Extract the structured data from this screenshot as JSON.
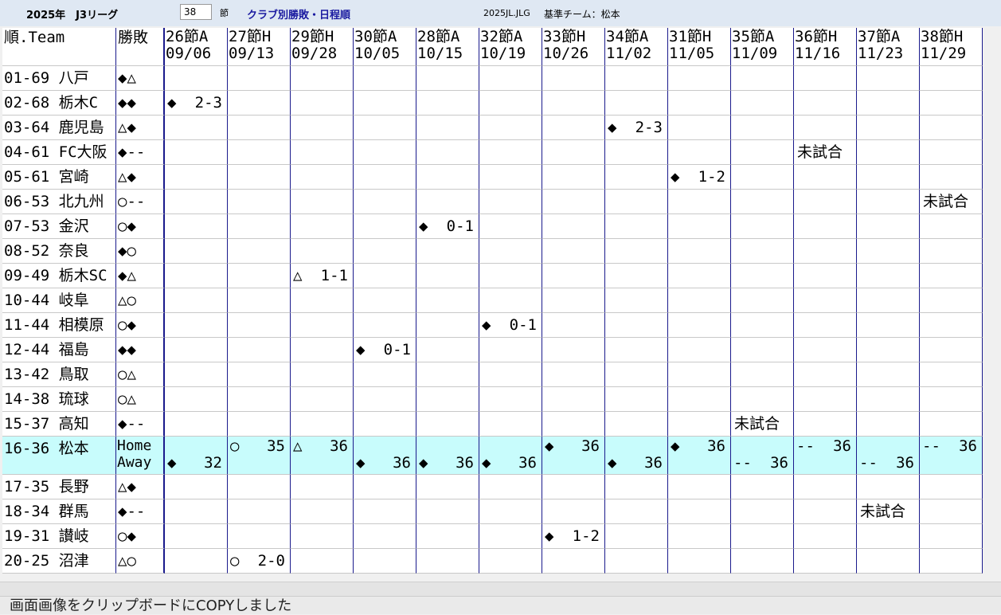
{
  "header": {
    "league": "2025年　J3リーグ",
    "round": "38",
    "round_unit": "節",
    "title": "クラブ別勝敗・日程順",
    "file": "2025JL.JLG",
    "base_team": "基準チーム：松本"
  },
  "table": {
    "columns": [
      "順.Team",
      "勝敗"
    ],
    "matches": [
      [
        "26節A",
        "09/06"
      ],
      [
        "27節H",
        "09/13"
      ],
      [
        "29節H",
        "09/28"
      ],
      [
        "30節A",
        "10/05"
      ],
      [
        "28節A",
        "10/15"
      ],
      [
        "32節A",
        "10/19"
      ],
      [
        "33節H",
        "10/26"
      ],
      [
        "34節A",
        "11/02"
      ],
      [
        "31節H",
        "11/05"
      ],
      [
        "35節A",
        "11/09"
      ],
      [
        "36節H",
        "11/16"
      ],
      [
        "37節A",
        "11/23"
      ],
      [
        "38節H",
        "11/29"
      ]
    ],
    "rows": [
      {
        "team": "01-69 八戸",
        "result": "◆△",
        "cells": [
          null,
          null,
          null,
          null,
          null,
          null,
          null,
          null,
          null,
          null,
          null,
          null,
          null
        ]
      },
      {
        "team": "02-68 栃木C",
        "result": "◆◆",
        "cells": [
          {
            "mark": "◆",
            "score": "2-3"
          },
          null,
          null,
          null,
          null,
          null,
          null,
          null,
          null,
          null,
          null,
          null,
          null
        ]
      },
      {
        "team": "03-64 鹿児島",
        "result": "△◆",
        "cells": [
          null,
          null,
          null,
          null,
          null,
          null,
          null,
          {
            "mark": "◆",
            "score": "2-3"
          },
          null,
          null,
          null,
          null,
          null
        ]
      },
      {
        "team": "04-61 FC大阪",
        "result": "◆--",
        "cells": [
          null,
          null,
          null,
          null,
          null,
          null,
          null,
          null,
          null,
          null,
          {
            "note": "未試合"
          },
          null,
          null
        ]
      },
      {
        "team": "05-61 宮崎",
        "result": "△◆",
        "cells": [
          null,
          null,
          null,
          null,
          null,
          null,
          null,
          null,
          {
            "mark": "◆",
            "score": "1-2"
          },
          null,
          null,
          null,
          null
        ]
      },
      {
        "team": "06-53 北九州",
        "result": "○--",
        "cells": [
          null,
          null,
          null,
          null,
          null,
          null,
          null,
          null,
          null,
          null,
          null,
          null,
          {
            "note": "未試合"
          }
        ]
      },
      {
        "team": "07-53 金沢",
        "result": "○◆",
        "cells": [
          null,
          null,
          null,
          null,
          {
            "mark": "◆",
            "score": "0-1"
          },
          null,
          null,
          null,
          null,
          null,
          null,
          null,
          null
        ]
      },
      {
        "team": "08-52 奈良",
        "result": "◆○",
        "cells": [
          null,
          null,
          null,
          null,
          null,
          null,
          null,
          null,
          null,
          null,
          null,
          null,
          null
        ]
      },
      {
        "team": "09-49 栃木SC",
        "result": "◆△",
        "cells": [
          null,
          null,
          {
            "mark": "△",
            "score": "1-1"
          },
          null,
          null,
          null,
          null,
          null,
          null,
          null,
          null,
          null,
          null
        ]
      },
      {
        "team": "10-44 岐阜",
        "result": "△○",
        "cells": [
          null,
          null,
          null,
          null,
          null,
          null,
          null,
          null,
          null,
          null,
          null,
          null,
          null
        ]
      },
      {
        "team": "11-44 相模原",
        "result": "○◆",
        "cells": [
          null,
          null,
          null,
          null,
          null,
          {
            "mark": "◆",
            "score": "0-1"
          },
          null,
          null,
          null,
          null,
          null,
          null,
          null
        ]
      },
      {
        "team": "12-44 福島",
        "result": "◆◆",
        "cells": [
          null,
          null,
          null,
          {
            "mark": "◆",
            "score": "0-1"
          },
          null,
          null,
          null,
          null,
          null,
          null,
          null,
          null,
          null
        ]
      },
      {
        "team": "13-42 鳥取",
        "result": "○△",
        "cells": [
          null,
          null,
          null,
          null,
          null,
          null,
          null,
          null,
          null,
          null,
          null,
          null,
          null
        ]
      },
      {
        "team": "14-38 琉球",
        "result": "○△",
        "cells": [
          null,
          null,
          null,
          null,
          null,
          null,
          null,
          null,
          null,
          null,
          null,
          null,
          null
        ]
      },
      {
        "team": "15-37 高知",
        "result": "◆--",
        "cells": [
          null,
          null,
          null,
          null,
          null,
          null,
          null,
          null,
          null,
          {
            "note": "未試合"
          },
          null,
          null,
          null
        ]
      },
      {
        "team": "16-36 松本",
        "result": [
          "Home",
          "Away"
        ],
        "cells": [
          {
            "home": null,
            "away": {
              "mark": "◆",
              "score": "32"
            }
          },
          {
            "home": {
              "mark": "○",
              "score": "35"
            },
            "away": null
          },
          {
            "home": {
              "mark": "△",
              "score": "36"
            },
            "away": null
          },
          {
            "home": null,
            "away": {
              "mark": "◆",
              "score": "36"
            }
          },
          {
            "home": null,
            "away": {
              "mark": "◆",
              "score": "36"
            }
          },
          {
            "home": null,
            "away": {
              "mark": "◆",
              "score": "36"
            }
          },
          {
            "home": {
              "mark": "◆",
              "score": "36"
            },
            "away": null
          },
          {
            "home": null,
            "away": {
              "mark": "◆",
              "score": "36"
            }
          },
          {
            "home": {
              "mark": "◆",
              "score": "36"
            },
            "away": null
          },
          {
            "home": null,
            "away": {
              "mark": "--",
              "score": "36"
            }
          },
          {
            "home": {
              "mark": "--",
              "score": "36"
            },
            "away": null
          },
          {
            "home": null,
            "away": {
              "mark": "--",
              "score": "36"
            }
          },
          {
            "home": {
              "mark": "--",
              "score": "36"
            },
            "away": null
          }
        ]
      },
      {
        "team": "17-35 長野",
        "result": "△◆",
        "cells": [
          null,
          null,
          null,
          null,
          null,
          null,
          null,
          null,
          null,
          null,
          null,
          null,
          null
        ]
      },
      {
        "team": "18-34 群馬",
        "result": "◆--",
        "cells": [
          null,
          null,
          null,
          null,
          null,
          null,
          null,
          null,
          null,
          null,
          null,
          {
            "note": "未試合"
          },
          null
        ]
      },
      {
        "team": "19-31 讃岐",
        "result": "○◆",
        "cells": [
          null,
          null,
          null,
          null,
          null,
          null,
          {
            "mark": "◆",
            "score": "1-2"
          },
          null,
          null,
          null,
          null,
          null,
          null
        ]
      },
      {
        "team": "20-25 沼津",
        "result": "△○",
        "cells": [
          null,
          {
            "mark": "○",
            "score": "2-0"
          },
          null,
          null,
          null,
          null,
          null,
          null,
          null,
          null,
          null,
          null,
          null
        ]
      }
    ]
  },
  "status": "画面画像をクリップボードにCOPYしました"
}
